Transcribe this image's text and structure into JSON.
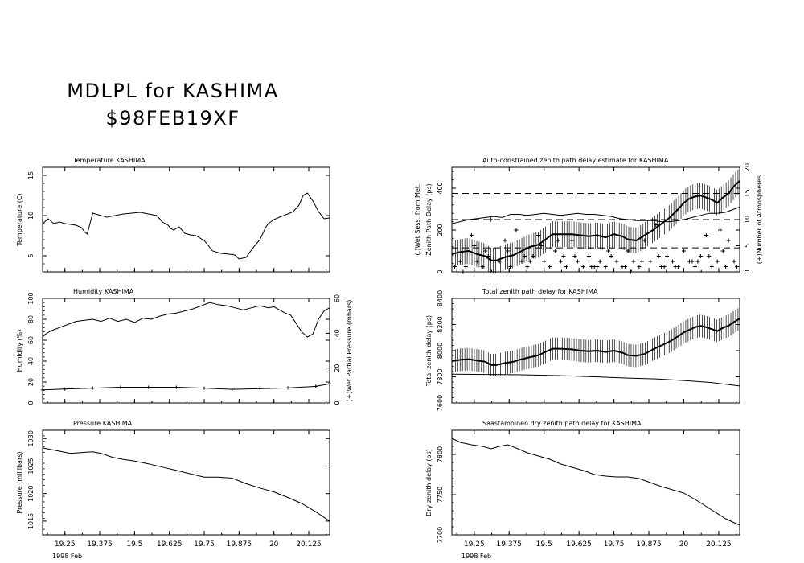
{
  "header": {
    "title_line1": "MDLPL for KASHIMA",
    "title_line2": "$98FEB19XF"
  },
  "chart_data": [
    {
      "id": "temperature",
      "type": "line",
      "title": "Temperature   KASHIMA",
      "ylabel": "Temperature (C)",
      "ylim": [
        3,
        16
      ],
      "yticks": [
        5,
        10,
        15
      ],
      "xlim": [
        19.17,
        20.2
      ],
      "xticks": [
        19.25,
        19.375,
        19.5,
        19.625,
        19.75,
        19.875,
        20,
        20.125
      ],
      "show_xtick_labels": false,
      "series": [
        {
          "x": [
            19.17,
            19.19,
            19.21,
            19.23,
            19.25,
            19.27,
            19.29,
            19.31,
            19.32,
            19.33,
            19.35,
            19.38,
            19.4,
            19.43,
            19.46,
            19.49,
            19.52,
            19.55,
            19.58,
            19.6,
            19.62,
            19.63,
            19.64,
            19.66,
            19.68,
            19.7,
            19.72,
            19.75,
            19.78,
            19.81,
            19.84,
            19.86,
            19.875,
            19.9,
            19.93,
            19.95,
            19.97,
            19.98,
            20.0,
            20.02,
            20.05,
            20.07,
            20.09,
            20.105,
            20.12,
            20.14,
            20.16,
            20.18,
            20.2
          ],
          "y": [
            9.0,
            9.6,
            9.0,
            9.2,
            9.0,
            8.9,
            8.8,
            8.5,
            8.0,
            7.7,
            10.3,
            10.0,
            9.8,
            10.0,
            10.2,
            10.3,
            10.4,
            10.2,
            10.0,
            9.2,
            8.8,
            8.4,
            8.2,
            8.6,
            7.8,
            7.6,
            7.5,
            6.9,
            5.6,
            5.3,
            5.2,
            5.1,
            4.6,
            4.8,
            6.2,
            7.0,
            8.5,
            9.0,
            9.5,
            9.8,
            10.2,
            10.5,
            11.3,
            12.5,
            12.8,
            11.8,
            10.5,
            9.6,
            9.7
          ]
        }
      ]
    },
    {
      "id": "humidity",
      "type": "line",
      "title": "Humidity     KASHIMA",
      "ylabel": "Humidity (%)",
      "ylabel_right": "(+)Wet Partial Pressure (mbars)",
      "ylim": [
        0,
        100
      ],
      "yticks": [
        0,
        20,
        40,
        60,
        80,
        100
      ],
      "y2lim": [
        0,
        60
      ],
      "y2ticks": [
        0,
        20,
        40,
        60
      ],
      "xlim": [
        19.17,
        20.2
      ],
      "xticks": [
        19.25,
        19.375,
        19.5,
        19.625,
        19.75,
        19.875,
        20,
        20.125
      ],
      "show_xtick_labels": false,
      "series": [
        {
          "name": "Humidity",
          "x": [
            19.17,
            19.2,
            19.23,
            19.26,
            19.29,
            19.32,
            19.35,
            19.38,
            19.41,
            19.44,
            19.47,
            19.5,
            19.53,
            19.56,
            19.59,
            19.62,
            19.65,
            19.68,
            19.71,
            19.74,
            19.77,
            19.8,
            19.83,
            19.86,
            19.89,
            19.92,
            19.95,
            19.98,
            20.0,
            20.02,
            20.04,
            20.06,
            20.08,
            20.1,
            20.12,
            20.14,
            20.16,
            20.18,
            20.2
          ],
          "y": [
            64,
            69,
            72,
            75,
            78,
            79,
            80,
            78,
            81,
            78,
            80,
            77,
            81,
            80,
            83,
            85,
            86,
            88,
            90,
            93,
            96,
            94,
            93,
            91,
            89,
            91,
            93,
            91,
            92,
            89,
            86,
            84,
            76,
            68,
            63,
            66,
            80,
            88,
            91
          ]
        },
        {
          "name": "(+)Wet Partial Pressure",
          "axis": "right",
          "x": [
            19.17,
            19.25,
            19.35,
            19.45,
            19.55,
            19.65,
            19.75,
            19.85,
            19.95,
            20.05,
            20.15,
            20.2
          ],
          "y": [
            7.5,
            8.0,
            8.5,
            9.0,
            9.0,
            9.0,
            8.5,
            7.8,
            8.2,
            8.6,
            9.5,
            11.0
          ]
        }
      ]
    },
    {
      "id": "pressure",
      "type": "line",
      "title": "Pressure     KASHIMA",
      "ylabel": "Pressure (millibars)",
      "ylim": [
        1012.5,
        1031.5
      ],
      "yticks": [
        1015,
        1020,
        1025,
        1030
      ],
      "xlim": [
        19.17,
        20.2
      ],
      "xticks": [
        19.25,
        19.375,
        19.5,
        19.625,
        19.75,
        19.875,
        20,
        20.125
      ],
      "xticklabels": [
        "19.25",
        "19.375",
        "19.5",
        "19.625",
        "19.75",
        "19.875",
        "20",
        "20.125"
      ],
      "xlabel": "1998 Feb",
      "series": [
        {
          "x": [
            19.17,
            19.22,
            19.27,
            19.32,
            19.35,
            19.38,
            19.42,
            19.46,
            19.5,
            19.55,
            19.6,
            19.65,
            19.7,
            19.75,
            19.8,
            19.85,
            19.9,
            19.95,
            20.0,
            20.05,
            20.1,
            20.15,
            20.2
          ],
          "y": [
            1028.3,
            1027.8,
            1027.3,
            1027.5,
            1027.6,
            1027.3,
            1026.6,
            1026.2,
            1025.9,
            1025.4,
            1024.8,
            1024.2,
            1023.6,
            1023.0,
            1023.0,
            1022.8,
            1021.8,
            1021.0,
            1020.3,
            1019.3,
            1018.2,
            1016.7,
            1015.0
          ]
        }
      ]
    },
    {
      "id": "zenith-estimate",
      "type": "line",
      "title": "Auto-constrained zenith path delay estimate for KASHIMA",
      "ylabel": "Zenith Path Delay (ps)",
      "ylabel_outer": "(.)Wet Sess. from Met.",
      "ylabel_right": "(+)Number of Atmospheres",
      "ylim": [
        0,
        500
      ],
      "yticks": [
        0,
        200,
        400
      ],
      "y2lim": [
        0,
        20
      ],
      "y2ticks": [
        0,
        5,
        10,
        15,
        20
      ],
      "xlim": [
        19.17,
        20.2
      ],
      "xticks": [
        19.25,
        19.375,
        19.5,
        19.625,
        19.75,
        19.875,
        20,
        20.125
      ],
      "show_xtick_labels": false,
      "dashed_levels": [
        115,
        250,
        375
      ],
      "series": [
        {
          "name": "Estimate",
          "x": [
            19.17,
            19.2,
            19.23,
            19.26,
            19.29,
            19.31,
            19.33,
            19.36,
            19.39,
            19.42,
            19.45,
            19.48,
            19.5,
            19.53,
            19.56,
            19.6,
            19.63,
            19.66,
            19.69,
            19.72,
            19.75,
            19.78,
            19.8,
            19.83,
            19.86,
            19.89,
            19.92,
            19.95,
            19.98,
            20.0,
            20.02,
            20.04,
            20.06,
            20.08,
            20.1,
            20.12,
            20.14,
            20.16,
            20.18,
            20.2
          ],
          "y": [
            85,
            95,
            100,
            85,
            75,
            55,
            55,
            70,
            80,
            100,
            120,
            130,
            150,
            180,
            180,
            180,
            175,
            170,
            175,
            165,
            180,
            170,
            155,
            150,
            175,
            200,
            230,
            260,
            300,
            330,
            350,
            360,
            365,
            355,
            345,
            330,
            355,
            375,
            410,
            435
          ]
        },
        {
          "name": "(.)Wet Sess. from Met.",
          "x": [
            19.17,
            19.2,
            19.23,
            19.26,
            19.29,
            19.32,
            19.35,
            19.38,
            19.41,
            19.44,
            19.47,
            19.5,
            19.53,
            19.56,
            19.59,
            19.62,
            19.65,
            19.68,
            19.71,
            19.74,
            19.77,
            19.8,
            19.83,
            19.86,
            19.89,
            19.92,
            19.95,
            19.98,
            20.0,
            20.03,
            20.06,
            20.09,
            20.12,
            20.15,
            20.18,
            20.2
          ],
          "y": [
            230,
            240,
            250,
            255,
            260,
            265,
            260,
            275,
            275,
            270,
            275,
            280,
            275,
            270,
            275,
            280,
            275,
            275,
            270,
            265,
            255,
            250,
            245,
            245,
            245,
            240,
            240,
            245,
            250,
            260,
            270,
            280,
            280,
            285,
            300,
            310
          ]
        }
      ],
      "points": {
        "name": "(+)Number of Atmospheres",
        "axis": "right",
        "x": [
          19.18,
          19.2,
          19.22,
          19.24,
          19.26,
          19.28,
          19.3,
          19.32,
          19.34,
          19.36,
          19.38,
          19.4,
          19.42,
          19.44,
          19.46,
          19.48,
          19.5,
          19.52,
          19.54,
          19.56,
          19.58,
          19.6,
          19.62,
          19.64,
          19.66,
          19.68,
          19.7,
          19.72,
          19.74,
          19.76,
          19.78,
          19.8,
          19.82,
          19.84,
          19.86,
          19.88,
          19.9,
          19.92,
          19.94,
          19.96,
          19.98,
          20.0,
          20.02,
          20.04,
          20.06,
          20.08,
          20.1,
          20.12,
          20.14,
          20.16,
          20.18,
          19.25,
          19.31,
          19.37,
          19.43,
          19.49,
          19.55,
          19.61,
          19.67,
          19.73,
          19.79,
          19.85,
          19.91,
          19.97,
          20.03,
          20.09,
          20.15,
          20.19,
          19.21,
          19.29,
          19.45,
          19.57,
          19.69,
          19.81,
          19.93,
          20.05,
          20.13
        ],
        "y": [
          1,
          2,
          1,
          7,
          2,
          1,
          3,
          0,
          2,
          6,
          1,
          8,
          2,
          1,
          3,
          7,
          2,
          1,
          4,
          2,
          1,
          6,
          2,
          1,
          3,
          1,
          2,
          1,
          3,
          2,
          1,
          4,
          2,
          1,
          6,
          2,
          9,
          1,
          3,
          2,
          1,
          4,
          2,
          1,
          3,
          7,
          1,
          2,
          4,
          6,
          2,
          5,
          10,
          4,
          3,
          5,
          6,
          3,
          1,
          4,
          1,
          2,
          3,
          1,
          2,
          3,
          1,
          1,
          0,
          4,
          2,
          3,
          1,
          0,
          1,
          2,
          8
        ]
      }
    },
    {
      "id": "total-zenith",
      "type": "line",
      "title": "Total zenith path delay for KASHIMA",
      "ylabel": "Total zenith delay (ps)",
      "ylim": [
        7600,
        8400
      ],
      "yticks": [
        7600,
        7800,
        8000,
        8200,
        8400
      ],
      "xlim": [
        19.17,
        20.2
      ],
      "xticks": [
        19.25,
        19.375,
        19.5,
        19.625,
        19.75,
        19.875,
        20,
        20.125
      ],
      "show_xtick_labels": false,
      "series": [
        {
          "name": "Total",
          "x": [
            19.17,
            19.2,
            19.23,
            19.26,
            19.29,
            19.31,
            19.33,
            19.36,
            19.39,
            19.42,
            19.45,
            19.48,
            19.5,
            19.53,
            19.56,
            19.6,
            19.63,
            19.66,
            19.69,
            19.72,
            19.75,
            19.78,
            19.8,
            19.83,
            19.86,
            19.89,
            19.92,
            19.95,
            19.98,
            20.0,
            20.02,
            20.04,
            20.06,
            20.08,
            20.1,
            20.12,
            20.14,
            20.16,
            20.18,
            20.2
          ],
          "y": [
            7920,
            7930,
            7935,
            7925,
            7915,
            7890,
            7890,
            7905,
            7915,
            7935,
            7950,
            7965,
            7985,
            8015,
            8015,
            8010,
            8000,
            7995,
            8000,
            7990,
            8000,
            7985,
            7965,
            7960,
            7975,
            8010,
            8040,
            8070,
            8110,
            8140,
            8160,
            8180,
            8190,
            8180,
            8165,
            8150,
            8175,
            8190,
            8220,
            8245
          ]
        },
        {
          "name": "Dry",
          "x": [
            19.17,
            19.3,
            19.4,
            19.5,
            19.6,
            19.7,
            19.8,
            19.9,
            20.0,
            20.1,
            20.2
          ],
          "y": [
            7820,
            7818,
            7816,
            7812,
            7806,
            7798,
            7790,
            7784,
            7772,
            7756,
            7730
          ]
        }
      ]
    },
    {
      "id": "dry-zenith",
      "type": "line",
      "title": "Saastamoinen dry zenith path delay for KASHIMA",
      "ylabel": "Dry zenith delay (ps)",
      "ylim": [
        7700,
        7830
      ],
      "yticks": [
        7700,
        7750,
        7800
      ],
      "xlim": [
        19.17,
        20.2
      ],
      "xticks": [
        19.25,
        19.375,
        19.5,
        19.625,
        19.75,
        19.875,
        20,
        20.125
      ],
      "xticklabels": [
        "19.25",
        "19.375",
        "19.5",
        "19.625",
        "19.75",
        "19.875",
        "20",
        "20.125"
      ],
      "xlabel": "1998 Feb",
      "series": [
        {
          "x": [
            19.17,
            19.2,
            19.24,
            19.28,
            19.31,
            19.34,
            19.37,
            19.4,
            19.44,
            19.48,
            19.52,
            19.56,
            19.6,
            19.64,
            19.68,
            19.72,
            19.76,
            19.8,
            19.84,
            19.88,
            19.92,
            19.96,
            20.0,
            20.05,
            20.1,
            20.15,
            20.2
          ],
          "y": [
            7820,
            7815,
            7812,
            7810,
            7807,
            7810,
            7812,
            7808,
            7802,
            7798,
            7794,
            7788,
            7784,
            7780,
            7775,
            7773,
            7772,
            7772,
            7770,
            7765,
            7760,
            7756,
            7752,
            7742,
            7731,
            7720,
            7712
          ]
        }
      ]
    }
  ]
}
